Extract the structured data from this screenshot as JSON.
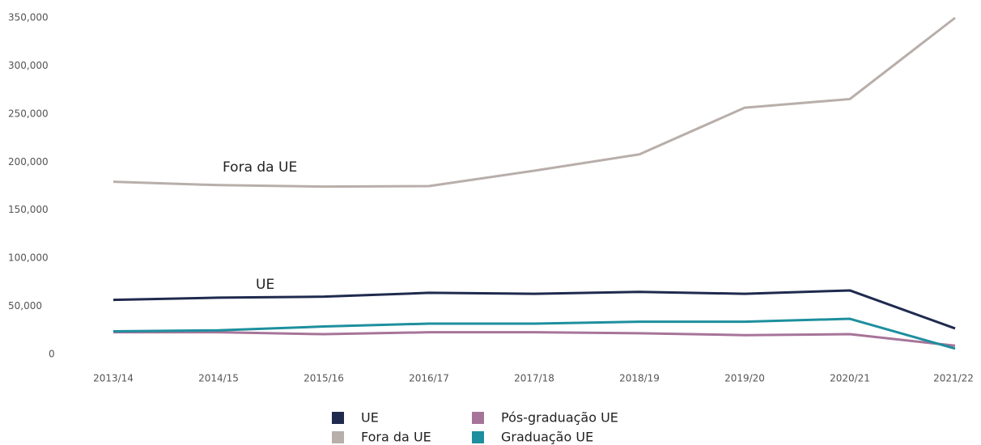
{
  "chart_data": {
    "type": "line",
    "categories": [
      "2013/14",
      "2014/15",
      "2015/16",
      "2016/17",
      "2017/18",
      "2018/19",
      "2019/20",
      "2020/21",
      "2021/22"
    ],
    "series": [
      {
        "name": "UE",
        "color": "#1f2a4e",
        "values": [
          56700,
          59000,
          60000,
          64000,
          63000,
          65000,
          63000,
          66500,
          27000
        ]
      },
      {
        "name": "Fora da UE",
        "color": "#b8aeaa",
        "values": [
          179500,
          176000,
          174500,
          175000,
          191000,
          208000,
          256500,
          265500,
          350000
        ]
      },
      {
        "name": "Pós-graduação UE",
        "color": "#a77499",
        "values": [
          23000,
          23000,
          21000,
          23000,
          23000,
          22000,
          20000,
          21000,
          9000
        ]
      },
      {
        "name": "Graduação UE",
        "color": "#1d8f9e",
        "values": [
          24000,
          25000,
          29000,
          32000,
          32000,
          34000,
          34000,
          37000,
          6000
        ]
      }
    ],
    "ylim": [
      0,
      350000
    ],
    "yticks": [
      0,
      {
        "value": 50000,
        "label": "50,000"
      },
      {
        "value": 100000,
        "label": "100,000"
      },
      {
        "value": 150000,
        "label": "150,000"
      },
      {
        "value": 200000,
        "label": "200,000"
      },
      {
        "value": 250000,
        "label": "250,000"
      },
      {
        "value": 300000,
        "label": "300,000"
      },
      {
        "value": 350000,
        "label": "350,000"
      }
    ],
    "annotations": [
      "Fora da UE",
      "UE"
    ]
  }
}
